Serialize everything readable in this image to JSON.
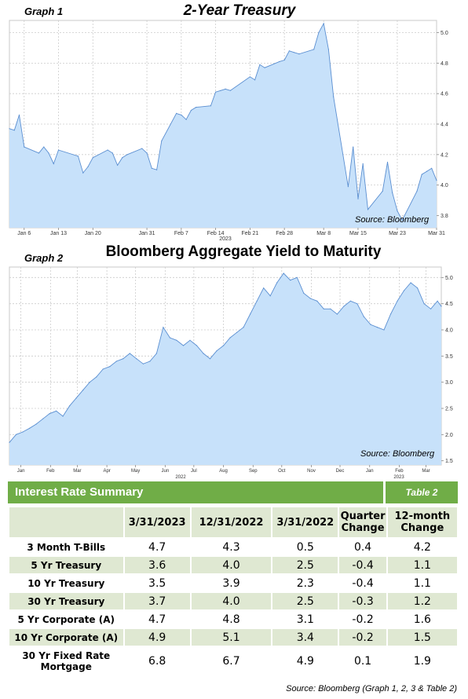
{
  "graph1": {
    "label": "Graph 1",
    "title": "2-Year Treasury",
    "source": "Source: Bloomberg",
    "year_label": "2023",
    "chart_data": {
      "type": "area",
      "title": "2-Year Treasury",
      "x_ticks": [
        "Jan 6",
        "Jan 13",
        "Jan 20",
        "Jan 31",
        "Feb 7",
        "Feb 14",
        "Feb 21",
        "Feb 28",
        "Mar 8",
        "Mar 15",
        "Mar 23",
        "Mar 31"
      ],
      "y_ticks": [
        3.8,
        4.0,
        4.2,
        4.4,
        4.6,
        4.8,
        5.0
      ],
      "ylim": [
        3.72,
        5.08
      ],
      "series": [
        {
          "x": [
            "2023-01-03",
            "2023-01-04",
            "2023-01-05",
            "2023-01-06",
            "2023-01-09",
            "2023-01-10",
            "2023-01-11",
            "2023-01-12",
            "2023-01-13",
            "2023-01-17",
            "2023-01-18",
            "2023-01-19",
            "2023-01-20",
            "2023-01-23",
            "2023-01-24",
            "2023-01-25",
            "2023-01-26",
            "2023-01-27",
            "2023-01-30",
            "2023-01-31",
            "2023-02-01",
            "2023-02-02",
            "2023-02-03",
            "2023-02-06",
            "2023-02-07",
            "2023-02-08",
            "2023-02-09",
            "2023-02-10",
            "2023-02-13",
            "2023-02-14",
            "2023-02-15",
            "2023-02-16",
            "2023-02-17",
            "2023-02-21",
            "2023-02-22",
            "2023-02-23",
            "2023-02-24",
            "2023-02-27",
            "2023-02-28",
            "2023-03-01",
            "2023-03-02",
            "2023-03-03",
            "2023-03-06",
            "2023-03-07",
            "2023-03-08",
            "2023-03-09",
            "2023-03-10",
            "2023-03-13",
            "2023-03-14",
            "2023-03-15",
            "2023-03-16",
            "2023-03-17",
            "2023-03-20",
            "2023-03-21",
            "2023-03-22",
            "2023-03-23",
            "2023-03-24",
            "2023-03-27",
            "2023-03-28",
            "2023-03-29",
            "2023-03-30",
            "2023-03-31"
          ],
          "values": [
            4.37,
            4.36,
            4.46,
            4.25,
            4.21,
            4.25,
            4.21,
            4.14,
            4.23,
            4.19,
            4.08,
            4.12,
            4.18,
            4.23,
            4.21,
            4.13,
            4.18,
            4.2,
            4.24,
            4.21,
            4.11,
            4.1,
            4.29,
            4.47,
            4.46,
            4.43,
            4.49,
            4.51,
            4.52,
            4.61,
            4.62,
            4.63,
            4.62,
            4.71,
            4.69,
            4.79,
            4.77,
            4.81,
            4.82,
            4.88,
            4.87,
            4.86,
            4.89,
            5.0,
            5.06,
            4.89,
            4.58,
            3.99,
            4.25,
            3.91,
            4.14,
            3.84,
            3.96,
            4.15,
            3.95,
            3.83,
            3.77,
            3.96,
            4.07,
            4.09,
            4.11,
            4.03
          ]
        }
      ]
    }
  },
  "graph2": {
    "label": "Graph 2",
    "title": "Bloomberg Aggregate Yield to Maturity",
    "source": "Source: Bloomberg",
    "year_label_a": "2022",
    "year_label_b": "2023",
    "chart_data": {
      "type": "area",
      "title": "Bloomberg Aggregate Yield to Maturity",
      "x_ticks": [
        "Jan",
        "Feb",
        "Mar",
        "Apr",
        "May",
        "Jun",
        "Jul",
        "Aug",
        "Sep",
        "Oct",
        "Nov",
        "Dec",
        "Jan",
        "Feb",
        "Mar"
      ],
      "y_ticks": [
        1.5,
        2.0,
        2.5,
        3.0,
        3.5,
        4.0,
        4.5,
        5.0
      ],
      "ylim": [
        1.42,
        5.2
      ],
      "series": [
        {
          "x": [
            "2022-01-03",
            "2022-01-10",
            "2022-01-17",
            "2022-01-24",
            "2022-01-31",
            "2022-02-07",
            "2022-02-14",
            "2022-02-21",
            "2022-02-28",
            "2022-03-07",
            "2022-03-14",
            "2022-03-21",
            "2022-03-28",
            "2022-04-04",
            "2022-04-11",
            "2022-04-18",
            "2022-04-25",
            "2022-05-02",
            "2022-05-09",
            "2022-05-16",
            "2022-05-23",
            "2022-05-30",
            "2022-06-06",
            "2022-06-13",
            "2022-06-20",
            "2022-06-27",
            "2022-07-04",
            "2022-07-11",
            "2022-07-18",
            "2022-07-25",
            "2022-08-01",
            "2022-08-08",
            "2022-08-15",
            "2022-08-22",
            "2022-08-29",
            "2022-09-05",
            "2022-09-12",
            "2022-09-19",
            "2022-09-26",
            "2022-10-03",
            "2022-10-10",
            "2022-10-17",
            "2022-10-24",
            "2022-10-31",
            "2022-11-07",
            "2022-11-14",
            "2022-11-21",
            "2022-11-28",
            "2022-12-05",
            "2022-12-12",
            "2022-12-19",
            "2022-12-26",
            "2023-01-02",
            "2023-01-09",
            "2023-01-16",
            "2023-01-23",
            "2023-01-30",
            "2023-02-06",
            "2023-02-13",
            "2023-02-20",
            "2023-02-27",
            "2023-03-06",
            "2023-03-13",
            "2023-03-20",
            "2023-03-27",
            "2023-03-31"
          ],
          "values": [
            1.85,
            2.0,
            2.05,
            2.12,
            2.2,
            2.3,
            2.4,
            2.45,
            2.35,
            2.55,
            2.7,
            2.85,
            3.0,
            3.1,
            3.25,
            3.3,
            3.4,
            3.45,
            3.55,
            3.45,
            3.35,
            3.4,
            3.55,
            4.05,
            3.85,
            3.8,
            3.7,
            3.8,
            3.7,
            3.55,
            3.45,
            3.6,
            3.7,
            3.85,
            3.95,
            4.05,
            4.3,
            4.55,
            4.8,
            4.65,
            4.9,
            5.08,
            4.95,
            5.0,
            4.7,
            4.6,
            4.55,
            4.4,
            4.4,
            4.3,
            4.45,
            4.55,
            4.5,
            4.25,
            4.1,
            4.05,
            4.0,
            4.3,
            4.55,
            4.75,
            4.9,
            4.8,
            4.5,
            4.4,
            4.55,
            4.45
          ]
        }
      ]
    }
  },
  "table": {
    "title": "Interest Rate Summary",
    "label": "Table 2",
    "columns": [
      "",
      "3/31/2023",
      "12/31/2022",
      "3/31/2022",
      "Quarter Change",
      "12-month Change"
    ],
    "rows": [
      {
        "name": "3 Month T-Bills",
        "values": [
          "4.7",
          "4.3",
          "0.5",
          "0.4",
          "4.2"
        ]
      },
      {
        "name": "5 Yr Treasury",
        "values": [
          "3.6",
          "4.0",
          "2.5",
          "-0.4",
          "1.1"
        ]
      },
      {
        "name": "10 Yr Treasury",
        "values": [
          "3.5",
          "3.9",
          "2.3",
          "-0.4",
          "1.1"
        ]
      },
      {
        "name": "30 Yr Treasury",
        "values": [
          "3.7",
          "4.0",
          "2.5",
          "-0.3",
          "1.2"
        ]
      },
      {
        "name": "5 Yr Corporate (A)",
        "values": [
          "4.7",
          "4.8",
          "3.1",
          "-0.2",
          "1.6"
        ]
      },
      {
        "name": "10 Yr Corporate (A)",
        "values": [
          "4.9",
          "5.1",
          "3.4",
          "-0.2",
          "1.5"
        ]
      },
      {
        "name": "30 Yr Fixed Rate Mortgage",
        "values": [
          "6.8",
          "6.7",
          "4.9",
          "0.1",
          "1.9"
        ]
      }
    ],
    "source": "Source: Bloomberg (Graph 1, 2, 3 & Table 2)"
  },
  "colors": {
    "area_fill": "#c7e1fa",
    "area_line": "#5b8fd1",
    "banner": "#70ad47",
    "row_shade": "#dfe8d2"
  }
}
